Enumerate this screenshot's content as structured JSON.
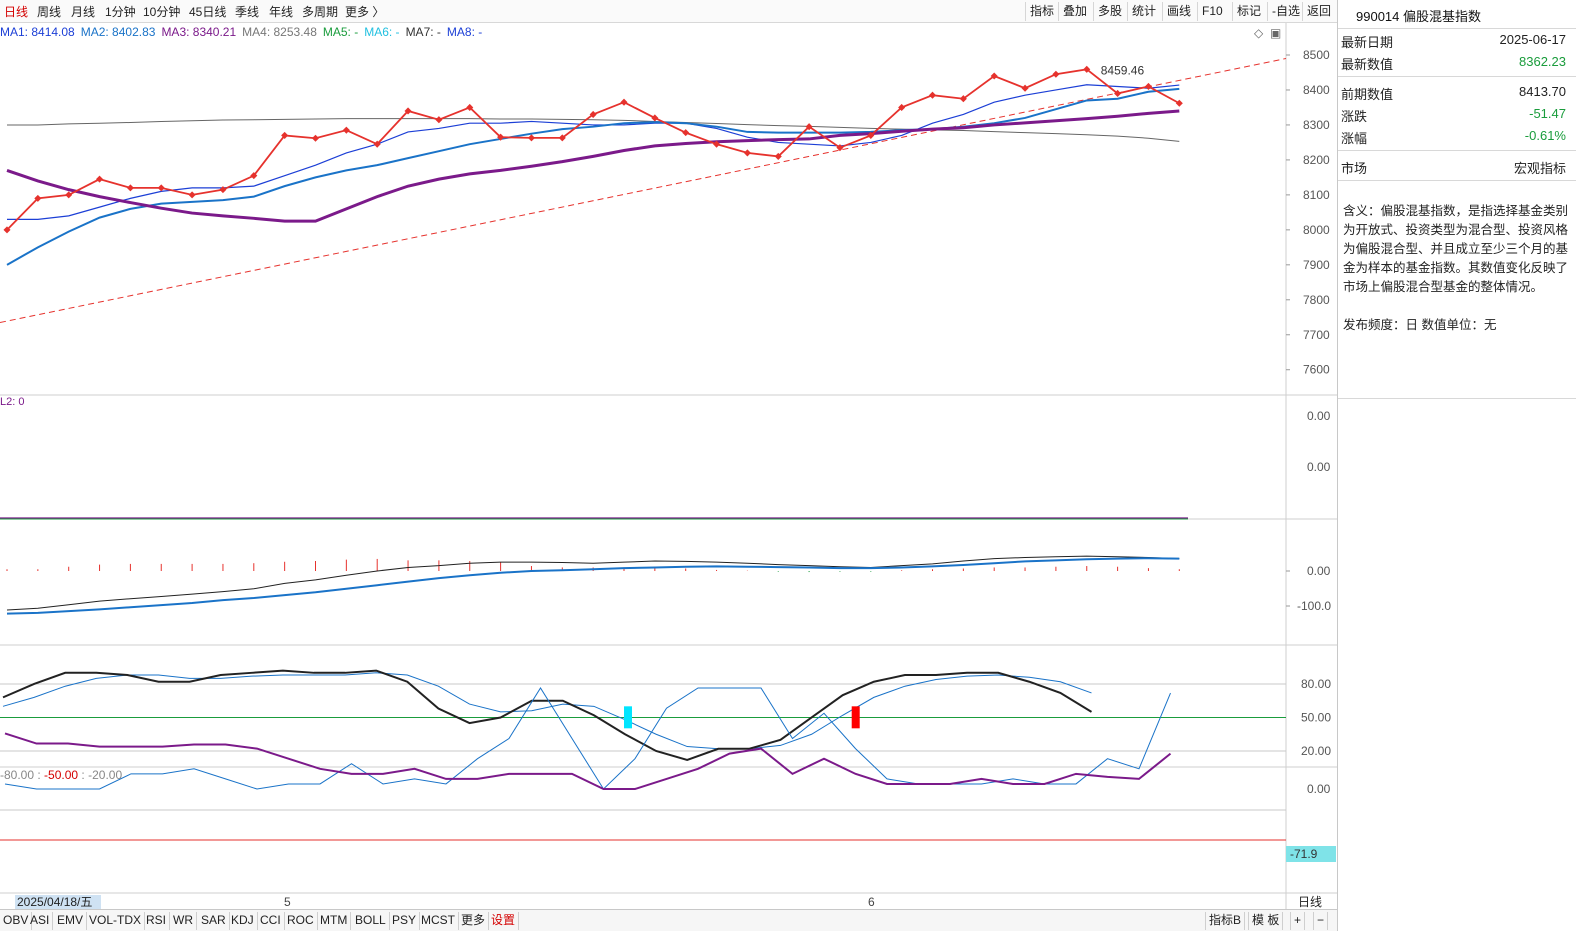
{
  "toolbar": {
    "periods": [
      "日线",
      "周线",
      "月线",
      "1分钟",
      "10分钟",
      "45日线",
      "季线",
      "年线",
      "多周期",
      "更多 〉"
    ],
    "tools": [
      "指标",
      "叠加",
      "多股",
      "统计",
      "画线",
      "F10",
      "标记",
      "-自选",
      "返回"
    ]
  },
  "ma_legend": {
    "ma1": "MA1: 8414.08",
    "ma2": "MA2: 8402.83",
    "ma3": "MA3: 8340.21",
    "ma4": "MA4: 8253.48",
    "ma5": "MA5: -",
    "ma6": "MA6: -",
    "ma7": "MA7: -",
    "ma8": "MA8: -"
  },
  "main_chart": {
    "peak_label": "8459.46",
    "price_ticks": [
      "8500",
      "8400",
      "8300",
      "8200",
      "8100",
      "8000",
      "7900",
      "7800",
      "7700",
      "7600"
    ],
    "close": [
      8000,
      8090,
      8100,
      8145,
      8120,
      8120,
      8100,
      8115,
      8155,
      8270,
      8262,
      8285,
      8245,
      8340,
      8315,
      8350,
      8265,
      8263,
      8263,
      8330,
      8365,
      8320,
      8278,
      8245,
      8220,
      8210,
      8295,
      8235,
      8270,
      8350,
      8385,
      8375,
      8440,
      8405,
      8445,
      8459,
      8390,
      8410,
      8362
    ],
    "ma1": [
      8030,
      8030,
      8040,
      8065,
      8090,
      8110,
      8120,
      8120,
      8125,
      8155,
      8185,
      8220,
      8245,
      8280,
      8290,
      8305,
      8305,
      8310,
      8305,
      8300,
      8300,
      8305,
      8305,
      8290,
      8265,
      8250,
      8245,
      8240,
      8250,
      8270,
      8305,
      8330,
      8365,
      8385,
      8400,
      8415,
      8410,
      8405,
      8414
    ],
    "ma2": [
      7900,
      7950,
      7995,
      8035,
      8060,
      8075,
      8080,
      8085,
      8095,
      8125,
      8150,
      8170,
      8185,
      8205,
      8225,
      8245,
      8260,
      8275,
      8288,
      8295,
      8305,
      8308,
      8305,
      8295,
      8280,
      8278,
      8278,
      8278,
      8280,
      8285,
      8288,
      8295,
      8305,
      8320,
      8345,
      8370,
      8375,
      8395,
      8403
    ],
    "ma3": [
      8170,
      8140,
      8115,
      8095,
      8078,
      8062,
      8048,
      8040,
      8033,
      8025,
      8025,
      8060,
      8095,
      8125,
      8145,
      8160,
      8170,
      8182,
      8195,
      8210,
      8227,
      8240,
      8247,
      8252,
      8255,
      8258,
      8260,
      8270,
      8275,
      8282,
      8288,
      8292,
      8300,
      8306,
      8312,
      8318,
      8325,
      8333,
      8340
    ],
    "ma4": [
      8300,
      8300,
      8303,
      8305,
      8307,
      8310,
      8312,
      8314,
      8315,
      8316,
      8317,
      8318,
      8318,
      8318,
      8318,
      8318,
      8317,
      8317,
      8316,
      8315,
      8313,
      8310,
      8307,
      8304,
      8301,
      8298,
      8296,
      8293,
      8290,
      8288,
      8286,
      8284,
      8281,
      8278,
      8275,
      8272,
      8268,
      8262,
      8253
    ],
    "trendline": {
      "y_start": 7735,
      "y_end": 8490
    }
  },
  "panel_l2": {
    "label": "L2: 0",
    "ticks": [
      "0.00",
      "0.00"
    ]
  },
  "panel_macd": {
    "ticks": [
      "0.00",
      "-100.0"
    ],
    "bars": [
      5,
      5,
      12,
      18,
      20,
      20,
      20,
      20,
      22,
      26,
      28,
      32,
      34,
      30,
      30,
      28,
      25,
      14,
      10,
      10,
      10,
      8,
      7,
      3,
      1,
      -2,
      -3,
      -2,
      -2,
      2,
      5,
      7,
      10,
      10,
      12,
      14,
      12,
      8,
      5
    ],
    "dif": [
      -110,
      -105,
      -95,
      -85,
      -78,
      -72,
      -65,
      -58,
      -50,
      -35,
      -25,
      -12,
      0,
      10,
      15,
      22,
      25,
      25,
      24,
      22,
      25,
      28,
      27,
      25,
      22,
      18,
      15,
      12,
      10,
      15,
      20,
      28,
      35,
      38,
      40,
      42,
      40,
      38,
      35
    ],
    "dea": [
      -120,
      -118,
      -113,
      -108,
      -102,
      -96,
      -90,
      -82,
      -76,
      -68,
      -60,
      -50,
      -40,
      -30,
      -20,
      -12,
      -5,
      0,
      2,
      5,
      8,
      10,
      12,
      13,
      12,
      11,
      10,
      8,
      8,
      10,
      13,
      17,
      22,
      27,
      30,
      33,
      35,
      36,
      35
    ]
  },
  "panel_kdj": {
    "ticks": [
      "80.00",
      "50.00",
      "20.00"
    ],
    "k": [
      68,
      80,
      90,
      90,
      88,
      82,
      82,
      88,
      90,
      92,
      90,
      90,
      92,
      82,
      58,
      45,
      50,
      65,
      65,
      52,
      35,
      20,
      12,
      22,
      22,
      30,
      50,
      70,
      82,
      88,
      88,
      90,
      90,
      82,
      72,
      55
    ],
    "d": [
      60,
      68,
      78,
      85,
      88,
      88,
      85,
      85,
      87,
      88,
      88,
      88,
      90,
      88,
      78,
      62,
      55,
      56,
      62,
      60,
      48,
      35,
      24,
      22,
      22,
      25,
      35,
      52,
      68,
      78,
      84,
      87,
      88,
      86,
      82,
      72
    ],
    "marker_cyan_index": 20,
    "marker_red_index": 27
  },
  "panel_wr": {
    "label_a": "-80.00",
    "label_b": "-50.00",
    "label_c": "-20.00",
    "ticks": [
      "0.00"
    ],
    "current_value": "-71.9",
    "wr1": [
      -5,
      0,
      0,
      0,
      -15,
      -15,
      -20,
      -10,
      0,
      -5,
      -5,
      -25,
      -5,
      -10,
      -5,
      -30,
      -50,
      -100,
      -50,
      0,
      -30,
      -80,
      -100,
      -100,
      -100,
      -50,
      -75,
      -40,
      -10,
      -5,
      -5,
      -5,
      -10,
      -5,
      -5,
      -30,
      -20,
      -95
    ],
    "wr2": [
      -55,
      -45,
      -45,
      -42,
      -42,
      -42,
      -44,
      -44,
      -40,
      -30,
      -20,
      -15,
      -15,
      -20,
      -10,
      -10,
      -15,
      -15,
      -15,
      0,
      0,
      -10,
      -20,
      -35,
      -40,
      -15,
      -30,
      -15,
      -5,
      -5,
      -5,
      -10,
      -5,
      -5,
      -15,
      -12,
      -10,
      -35
    ],
    "date_label": "2025/04/18/五",
    "month_5": "5",
    "month_6": "6",
    "period_label": "日线"
  },
  "indicator_tabs": [
    "OBV",
    "ASI",
    "EMV",
    "VOL-TDX",
    "RSI",
    "WR",
    "SAR",
    "KDJ",
    "CCI",
    "ROC",
    "MTM",
    "BOLL",
    "PSY",
    "MCST",
    "更多",
    "设置"
  ],
  "bottom_right": [
    "指标B",
    "模 板",
    "+",
    "−"
  ],
  "info_panel": {
    "title": "990014 偏股混基指数",
    "rows": [
      {
        "k": "最新日期",
        "v": "2025-06-17"
      },
      {
        "k": "最新数值",
        "v": "8362.23"
      },
      {
        "k": "前期数值",
        "v": "8413.70"
      },
      {
        "k": "涨跌",
        "v": "-51.47"
      },
      {
        "k": "涨幅",
        "v": "-0.61%"
      },
      {
        "k": "市场",
        "v": "宏观指标"
      }
    ],
    "description": "含义：偏股混基指数，是指选择基金类别为开放式、投资类型为混合型、投资风格为偏股混合型、并且成立至少三个月的基金为样本的基金指数。其数值变化反映了市场上偏股混合型基金的整体情况。",
    "frequency": "发布频度：日    数值单位：无"
  },
  "colors": {
    "up": "#e6322d",
    "down": "#1a9c3c",
    "ma1": "#1c3fd6",
    "ma2": "#1a73c8",
    "ma3": "#7b1a8a",
    "ma4": "#555555"
  }
}
